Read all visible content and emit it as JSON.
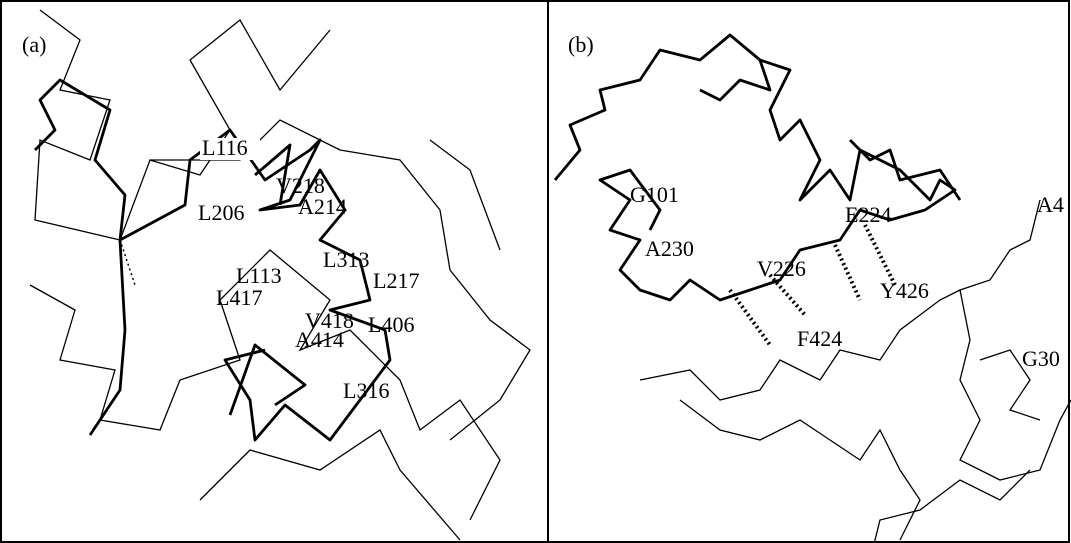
{
  "panels": [
    {
      "label": "(a)",
      "residues": [
        "L116",
        "V218",
        "A214",
        "L206",
        "L313",
        "L113",
        "L217",
        "L417",
        "V418",
        "L406",
        "A414",
        "L316"
      ]
    },
    {
      "label": "(b)",
      "residues": [
        "G101",
        "E224",
        "A230",
        "V226",
        "Y426",
        "F424",
        "A4",
        "G30"
      ]
    }
  ]
}
